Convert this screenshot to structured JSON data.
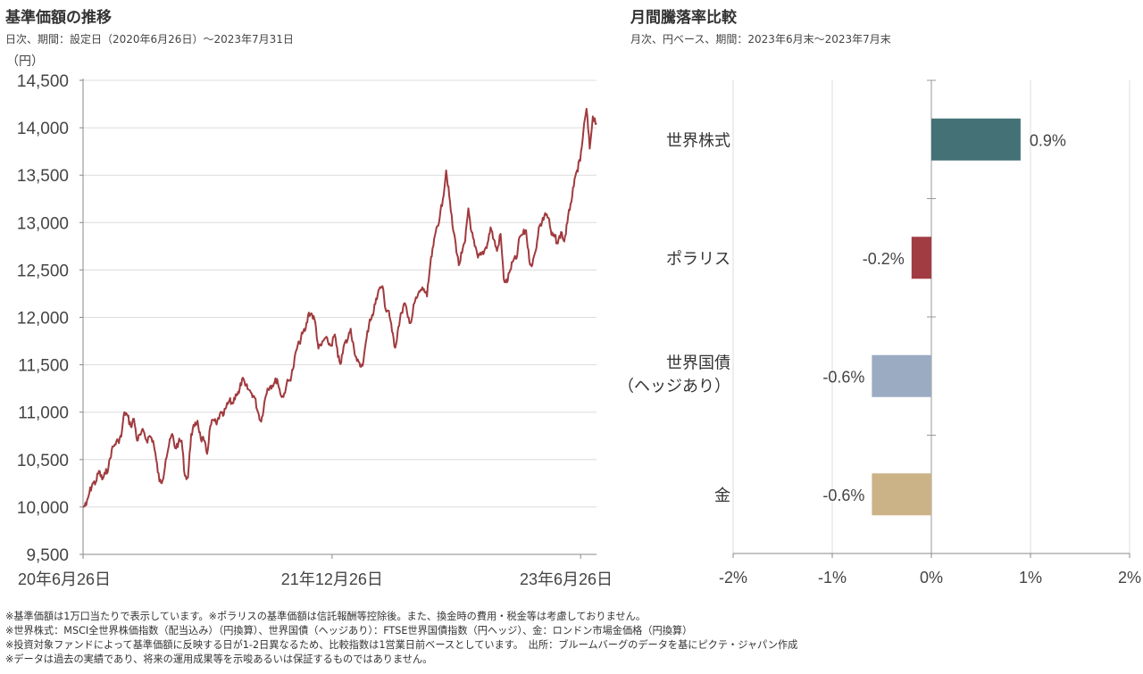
{
  "left_panel": {
    "title": "基準価額の推移",
    "subtitle": "日次、期間：設定日（2020年6月26日）～2023年7月31日",
    "unit": "（円）"
  },
  "right_panel": {
    "title": "月間騰落率比較",
    "subtitle": "月次、円ベース、期間：2023年6月末～2023年7月末"
  },
  "notes": [
    "※基準価額は1万口当たりで表示しています。※ポラリスの基準価額は信託報酬等控除後。また、換金時の費用・税金等は考慮しておりません。",
    "※世界株式：MSCI全世界株価指数（配当込み）（円換算）、世界国債（ヘッジあり）：FTSE世界国債指数（円ヘッジ）、金：ロンドン市場金価格（円換算）",
    "※投資対象ファンドによって基準価額に反映する日が1-2日異なるため、比較指数は1営業日前ベースとしています。　出所：ブルームバーグのデータを基にピクテ・ジャパン作成",
    "※データは過去の実績であり、将来の運用成果等を示唆あるいは保証するものではありません。"
  ],
  "chart_data": [
    {
      "type": "line",
      "title": "基準価額の推移",
      "ylabel": "（円）",
      "ylim": [
        9500,
        14500
      ],
      "yticks": [
        9500,
        10000,
        10500,
        11000,
        11500,
        12000,
        12500,
        13000,
        13500,
        14000,
        14500
      ],
      "ytick_labels": [
        "9,500",
        "10,000",
        "10,500",
        "11,000",
        "11,500",
        "12,000",
        "12,500",
        "13,000",
        "13,500",
        "14,000",
        "14,500"
      ],
      "xlim": [
        "2020-06-26",
        "2023-07-31"
      ],
      "xticks": [
        "2020-06-26",
        "2021-12-26",
        "2023-06-26"
      ],
      "xtick_labels": [
        "20年6月26日",
        "21年12月26日",
        "23年6月26日"
      ],
      "grid": true,
      "color": "#a03a3e",
      "series": [
        {
          "name": "基準価額",
          "points": [
            [
              "2020-06-26",
              10000
            ],
            [
              "2020-07-03",
              10020
            ],
            [
              "2020-07-10",
              10150
            ],
            [
              "2020-07-17",
              10250
            ],
            [
              "2020-07-24",
              10260
            ],
            [
              "2020-07-31",
              10380
            ],
            [
              "2020-08-07",
              10290
            ],
            [
              "2020-08-14",
              10350
            ],
            [
              "2020-08-21",
              10420
            ],
            [
              "2020-08-28",
              10600
            ],
            [
              "2020-09-04",
              10660
            ],
            [
              "2020-09-11",
              10700
            ],
            [
              "2020-09-18",
              10740
            ],
            [
              "2020-09-25",
              11000
            ],
            [
              "2020-10-02",
              10960
            ],
            [
              "2020-10-09",
              10850
            ],
            [
              "2020-10-16",
              10930
            ],
            [
              "2020-10-23",
              10700
            ],
            [
              "2020-10-30",
              10760
            ],
            [
              "2020-11-06",
              10800
            ],
            [
              "2020-11-13",
              10700
            ],
            [
              "2020-11-20",
              10750
            ],
            [
              "2020-11-27",
              10700
            ],
            [
              "2020-12-04",
              10500
            ],
            [
              "2020-12-11",
              10270
            ],
            [
              "2020-12-18",
              10280
            ],
            [
              "2020-12-25",
              10500
            ],
            [
              "2021-01-01",
              10650
            ],
            [
              "2021-01-08",
              10770
            ],
            [
              "2021-01-15",
              10620
            ],
            [
              "2021-01-22",
              10680
            ],
            [
              "2021-01-29",
              10700
            ],
            [
              "2021-02-05",
              10330
            ],
            [
              "2021-02-12",
              10310
            ],
            [
              "2021-02-19",
              10770
            ],
            [
              "2021-02-26",
              10850
            ],
            [
              "2021-03-05",
              10910
            ],
            [
              "2021-03-12",
              10720
            ],
            [
              "2021-03-19",
              10700
            ],
            [
              "2021-03-26",
              10560
            ],
            [
              "2021-04-02",
              10850
            ],
            [
              "2021-04-09",
              10920
            ],
            [
              "2021-04-16",
              10870
            ],
            [
              "2021-04-23",
              10980
            ],
            [
              "2021-04-30",
              10960
            ],
            [
              "2021-05-07",
              11050
            ],
            [
              "2021-05-14",
              11120
            ],
            [
              "2021-05-21",
              11090
            ],
            [
              "2021-05-28",
              11190
            ],
            [
              "2021-06-04",
              11200
            ],
            [
              "2021-06-11",
              11350
            ],
            [
              "2021-06-18",
              11280
            ],
            [
              "2021-06-25",
              11240
            ],
            [
              "2021-07-02",
              11200
            ],
            [
              "2021-07-09",
              11150
            ],
            [
              "2021-07-16",
              11000
            ],
            [
              "2021-07-23",
              10900
            ],
            [
              "2021-07-30",
              11100
            ],
            [
              "2021-08-06",
              11250
            ],
            [
              "2021-08-13",
              11280
            ],
            [
              "2021-08-20",
              11300
            ],
            [
              "2021-08-27",
              11350
            ],
            [
              "2021-09-03",
              11200
            ],
            [
              "2021-09-10",
              11160
            ],
            [
              "2021-09-17",
              11300
            ],
            [
              "2021-09-24",
              11340
            ],
            [
              "2021-10-01",
              11450
            ],
            [
              "2021-10-08",
              11650
            ],
            [
              "2021-10-15",
              11730
            ],
            [
              "2021-10-22",
              11830
            ],
            [
              "2021-10-29",
              11880
            ],
            [
              "2021-11-05",
              12050
            ],
            [
              "2021-11-12",
              12030
            ],
            [
              "2021-11-19",
              11950
            ],
            [
              "2021-11-26",
              11670
            ],
            [
              "2021-12-03",
              11710
            ],
            [
              "2021-12-10",
              11780
            ],
            [
              "2021-12-17",
              11740
            ],
            [
              "2021-12-24",
              11700
            ],
            [
              "2022-01-01",
              11820
            ],
            [
              "2022-01-08",
              11580
            ],
            [
              "2022-01-15",
              11520
            ],
            [
              "2022-01-22",
              11720
            ],
            [
              "2022-01-29",
              11760
            ],
            [
              "2022-02-05",
              11880
            ],
            [
              "2022-02-12",
              11680
            ],
            [
              "2022-02-19",
              11540
            ],
            [
              "2022-02-26",
              11480
            ],
            [
              "2022-03-05",
              11540
            ],
            [
              "2022-03-12",
              11780
            ],
            [
              "2022-03-19",
              11980
            ],
            [
              "2022-03-26",
              12020
            ],
            [
              "2022-04-02",
              12200
            ],
            [
              "2022-04-09",
              12300
            ],
            [
              "2022-04-16",
              12330
            ],
            [
              "2022-04-23",
              12080
            ],
            [
              "2022-04-30",
              12070
            ],
            [
              "2022-05-07",
              11850
            ],
            [
              "2022-05-14",
              11680
            ],
            [
              "2022-05-21",
              11900
            ],
            [
              "2022-05-28",
              12050
            ],
            [
              "2022-06-04",
              12150
            ],
            [
              "2022-06-11",
              12000
            ],
            [
              "2022-06-18",
              11950
            ],
            [
              "2022-06-25",
              12150
            ],
            [
              "2022-07-02",
              12220
            ],
            [
              "2022-07-09",
              12290
            ],
            [
              "2022-07-16",
              12300
            ],
            [
              "2022-07-23",
              12220
            ],
            [
              "2022-07-30",
              12550
            ],
            [
              "2022-08-06",
              12750
            ],
            [
              "2022-08-13",
              12950
            ],
            [
              "2022-08-20",
              13050
            ],
            [
              "2022-08-27",
              13250
            ],
            [
              "2022-09-03",
              13550
            ],
            [
              "2022-09-10",
              13280
            ],
            [
              "2022-09-17",
              12970
            ],
            [
              "2022-09-24",
              12780
            ],
            [
              "2022-10-01",
              12550
            ],
            [
              "2022-10-08",
              12680
            ],
            [
              "2022-10-15",
              12800
            ],
            [
              "2022-10-22",
              13150
            ],
            [
              "2022-10-29",
              12900
            ],
            [
              "2022-11-05",
              12750
            ],
            [
              "2022-11-12",
              12630
            ],
            [
              "2022-11-19",
              12660
            ],
            [
              "2022-11-26",
              12700
            ],
            [
              "2022-12-03",
              12780
            ],
            [
              "2022-12-10",
              12950
            ],
            [
              "2022-12-17",
              12820
            ],
            [
              "2022-12-24",
              12700
            ],
            [
              "2023-01-01",
              12880
            ],
            [
              "2023-01-08",
              12400
            ],
            [
              "2023-01-15",
              12370
            ],
            [
              "2023-01-22",
              12500
            ],
            [
              "2023-01-29",
              12600
            ],
            [
              "2023-02-05",
              12620
            ],
            [
              "2023-02-12",
              12850
            ],
            [
              "2023-02-19",
              12880
            ],
            [
              "2023-02-26",
              12920
            ],
            [
              "2023-03-05",
              12600
            ],
            [
              "2023-03-12",
              12560
            ],
            [
              "2023-03-19",
              12700
            ],
            [
              "2023-03-26",
              12950
            ],
            [
              "2023-04-02",
              13000
            ],
            [
              "2023-04-09",
              13100
            ],
            [
              "2023-04-16",
              13050
            ],
            [
              "2023-04-23",
              12870
            ],
            [
              "2023-04-30",
              12850
            ],
            [
              "2023-05-07",
              12780
            ],
            [
              "2023-05-14",
              12900
            ],
            [
              "2023-05-21",
              12800
            ],
            [
              "2023-05-28",
              13000
            ],
            [
              "2023-06-04",
              13200
            ],
            [
              "2023-06-11",
              13380
            ],
            [
              "2023-06-18",
              13550
            ],
            [
              "2023-06-25",
              13650
            ],
            [
              "2023-07-02",
              13950
            ],
            [
              "2023-07-09",
              14200
            ],
            [
              "2023-07-16",
              13780
            ],
            [
              "2023-07-23",
              14120
            ],
            [
              "2023-07-31",
              14050
            ]
          ]
        }
      ]
    },
    {
      "type": "bar",
      "orientation": "horizontal",
      "title": "月間騰落率比較",
      "categories": [
        "世界株式",
        "ポラリス",
        "世界国債\n（ヘッジあり）",
        "金"
      ],
      "category_lines": [
        [
          "世界株式"
        ],
        [
          "ポラリス"
        ],
        [
          "世界国債",
          "（ヘッジあり）"
        ],
        [
          "金"
        ]
      ],
      "values": [
        0.9,
        -0.2,
        -0.6,
        -0.6
      ],
      "value_labels": [
        "0.9%",
        "-0.2%",
        "-0.6%",
        "-0.6%"
      ],
      "colors": [
        "#437176",
        "#a13c43",
        "#9aabc2",
        "#cbb387"
      ],
      "xlim": [
        -2,
        2
      ],
      "xticks": [
        -2,
        -1,
        0,
        1,
        2
      ],
      "xtick_labels": [
        "-2%",
        "-1%",
        "0%",
        "1%",
        "2%"
      ],
      "grid": true
    }
  ]
}
